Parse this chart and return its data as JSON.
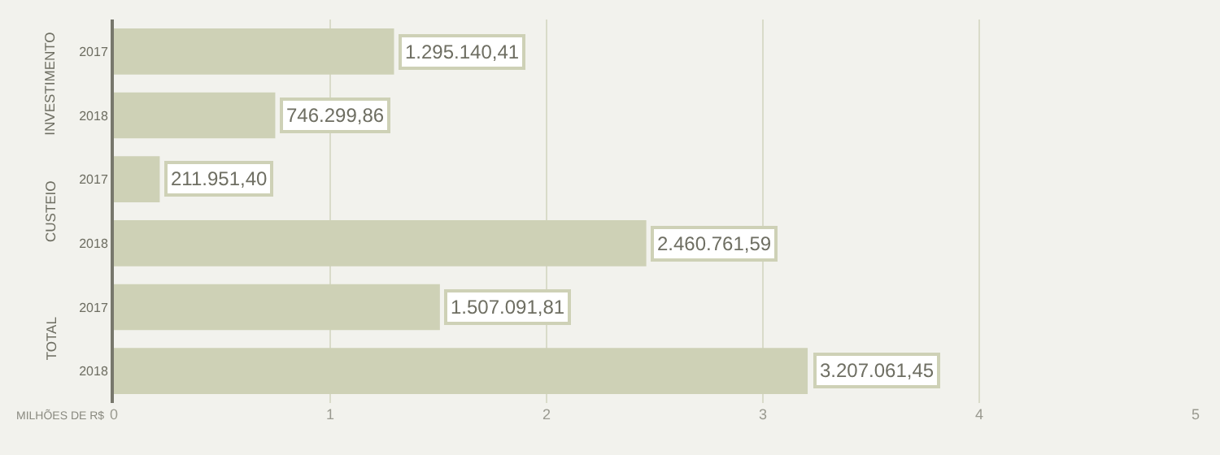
{
  "chart_data": {
    "type": "bar",
    "orientation": "horizontal",
    "categories": [
      "2017",
      "2018",
      "2017",
      "2018",
      "2017",
      "2018"
    ],
    "values": [
      1.295,
      0.746,
      0.212,
      2.461,
      1.507,
      3.207
    ],
    "color": "#ced1b6",
    "annotations": [
      "INVESTIMENTO",
      "CUSTEIO",
      "TOTAL",
      {
        "text": "1.295.140,41",
        "x": 1.295
      },
      {
        "text": "746.299,86",
        "x": 0.746
      },
      {
        "text": "211.951,40",
        "x": 0.212
      },
      {
        "text": "2.460.761,59",
        "x": 2.461
      },
      {
        "text": "1.507.091,81",
        "x": 1.507
      },
      {
        "text": "3.207.061,45",
        "x": 3.207
      }
    ],
    "xlabel": "MILHÕES DE R$",
    "xlim": [
      0,
      5
    ],
    "xticks": [
      0,
      1,
      2,
      3,
      4,
      5
    ],
    "grid": "x",
    "legend": false
  }
}
